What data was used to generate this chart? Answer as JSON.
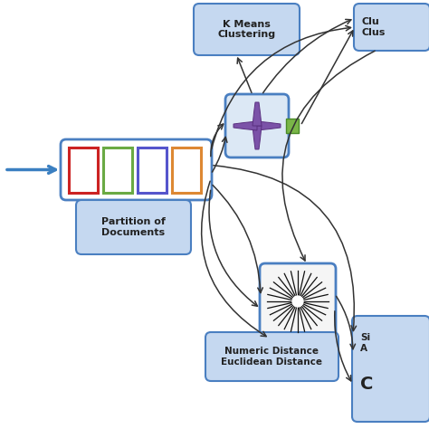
{
  "bg_color": "#ffffff",
  "box_border_color": "#4a7fc1",
  "box_fill_color": "#c5d8f0",
  "box_fill_light": "#dce8f5",
  "partition_box_fill": "#ffffff",
  "partition_box_border": "#4a7fc1",
  "rect_colors": [
    "#cc2222",
    "#6aaa44",
    "#5555cc",
    "#dd8833"
  ],
  "labels": {
    "k_means": "K Means\nClustering",
    "cluster": "Clu\nClus",
    "partition": "Partition of\nDocuments",
    "numeric": "Numeric Distance\nEuclidean Distance",
    "similarity": "Si\nA"
  },
  "arrow_blue": "#3a7fc1",
  "arrow_dark": "#333333",
  "cross_color": "#7b52a8",
  "cross_edge": "#5a3080",
  "green_fill": "#7ab648",
  "green_edge": "#4a8a28",
  "sun_color": "#111111"
}
